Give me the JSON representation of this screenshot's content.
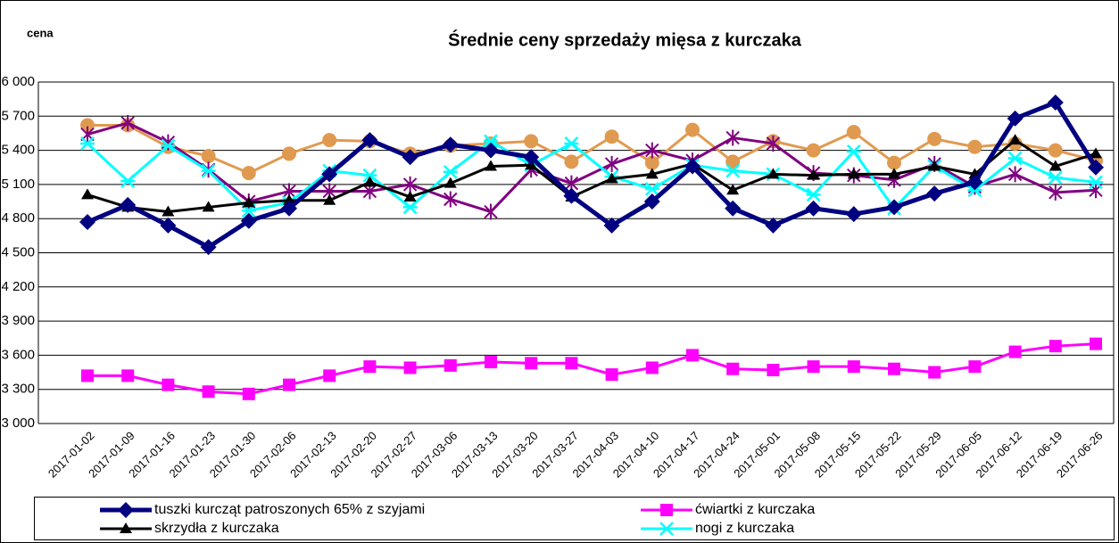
{
  "chart_data": {
    "type": "line",
    "title": "Średnie ceny sprzedaży mięsa z kurczaka",
    "y_label": "cena",
    "categories": [
      "2017-01-02",
      "2017-01-09",
      "2017-01-16",
      "2017-01-23",
      "2017-01-30",
      "2017-02-06",
      "2017-02-13",
      "2017-02-20",
      "2017-02-27",
      "2017-03-06",
      "2017-03-13",
      "2017-03-20",
      "2017-03-27",
      "2017-04-03",
      "2017-04-10",
      "2017-04-17",
      "2017-04-24",
      "2017-05-01",
      "2017-05-08",
      "2017-05-15",
      "2017-05-22",
      "2017-05-29",
      "2017-06-05",
      "2017-06-12",
      "2017-06-19",
      "2017-06-26"
    ],
    "ylim": [
      3000,
      6000
    ],
    "yticks": [
      {
        "value": 3000,
        "label": "3 000"
      },
      {
        "value": 3300,
        "label": "3 300"
      },
      {
        "value": 3600,
        "label": "3 600"
      },
      {
        "value": 3900,
        "label": "3 900"
      },
      {
        "value": 4200,
        "label": "4 200"
      },
      {
        "value": 4500,
        "label": "4 500"
      },
      {
        "value": 4800,
        "label": "4 800"
      },
      {
        "value": 5100,
        "label": "5 100"
      },
      {
        "value": 5400,
        "label": "5 400"
      },
      {
        "value": 5700,
        "label": "5 700"
      },
      {
        "value": 6000,
        "label": "6 000"
      }
    ],
    "grid": true,
    "legend": "bottom",
    "series": [
      {
        "name": "tuszki kurcząt patroszonych 65% z szyjami",
        "color": "#000080",
        "marker": "diamond",
        "values": [
          4770,
          4920,
          4740,
          4550,
          4780,
          4890,
          5190,
          5490,
          5340,
          5450,
          5400,
          5340,
          5000,
          4740,
          4950,
          5260,
          4890,
          4740,
          4890,
          4840,
          4900,
          5020,
          5120,
          5680,
          5820,
          5250
        ]
      },
      {
        "name": "ćwiartki z kurczaka",
        "color": "#ff00ff",
        "marker": "square",
        "values": [
          3420,
          3420,
          3340,
          3280,
          3260,
          3340,
          3420,
          3500,
          3490,
          3510,
          3540,
          3530,
          3530,
          3430,
          3490,
          3600,
          3480,
          3470,
          3500,
          3500,
          3480,
          3450,
          3500,
          3630,
          3680,
          3700
        ]
      },
      {
        "name": "skrzydła z kurczaka",
        "color": "#000000",
        "marker": "triangle",
        "values": [
          5010,
          4900,
          4860,
          4900,
          4940,
          4960,
          4960,
          5120,
          4990,
          5110,
          5260,
          5270,
          4990,
          5150,
          5190,
          5280,
          5050,
          5190,
          5180,
          5190,
          5190,
          5260,
          5190,
          5490,
          5260,
          5370
        ]
      },
      {
        "name": "nogi z kurczaka",
        "color": "#00ffff",
        "marker": "star",
        "values": [
          5460,
          5130,
          5440,
          5220,
          4870,
          4940,
          5220,
          5180,
          4900,
          5210,
          5480,
          5270,
          5460,
          5170,
          5060,
          5270,
          5220,
          5190,
          5010,
          5390,
          4890,
          5260,
          5050,
          5330,
          5160,
          5120
        ]
      },
      {
        "color": "#800080",
        "marker": "asterisk",
        "values": [
          5540,
          5640,
          5470,
          5230,
          4950,
          5040,
          5040,
          5040,
          5100,
          4970,
          4860,
          5230,
          5110,
          5280,
          5400,
          5310,
          5510,
          5460,
          5200,
          5180,
          5140,
          5280,
          5080,
          5190,
          5030,
          5050
        ]
      },
      {
        "color": "#e09a50",
        "marker": "circle",
        "values": [
          5620,
          5620,
          5430,
          5350,
          5200,
          5370,
          5490,
          5480,
          5370,
          5440,
          5460,
          5480,
          5300,
          5520,
          5290,
          5580,
          5300,
          5480,
          5400,
          5560,
          5290,
          5500,
          5430,
          5460,
          5400,
          5310
        ]
      }
    ]
  }
}
